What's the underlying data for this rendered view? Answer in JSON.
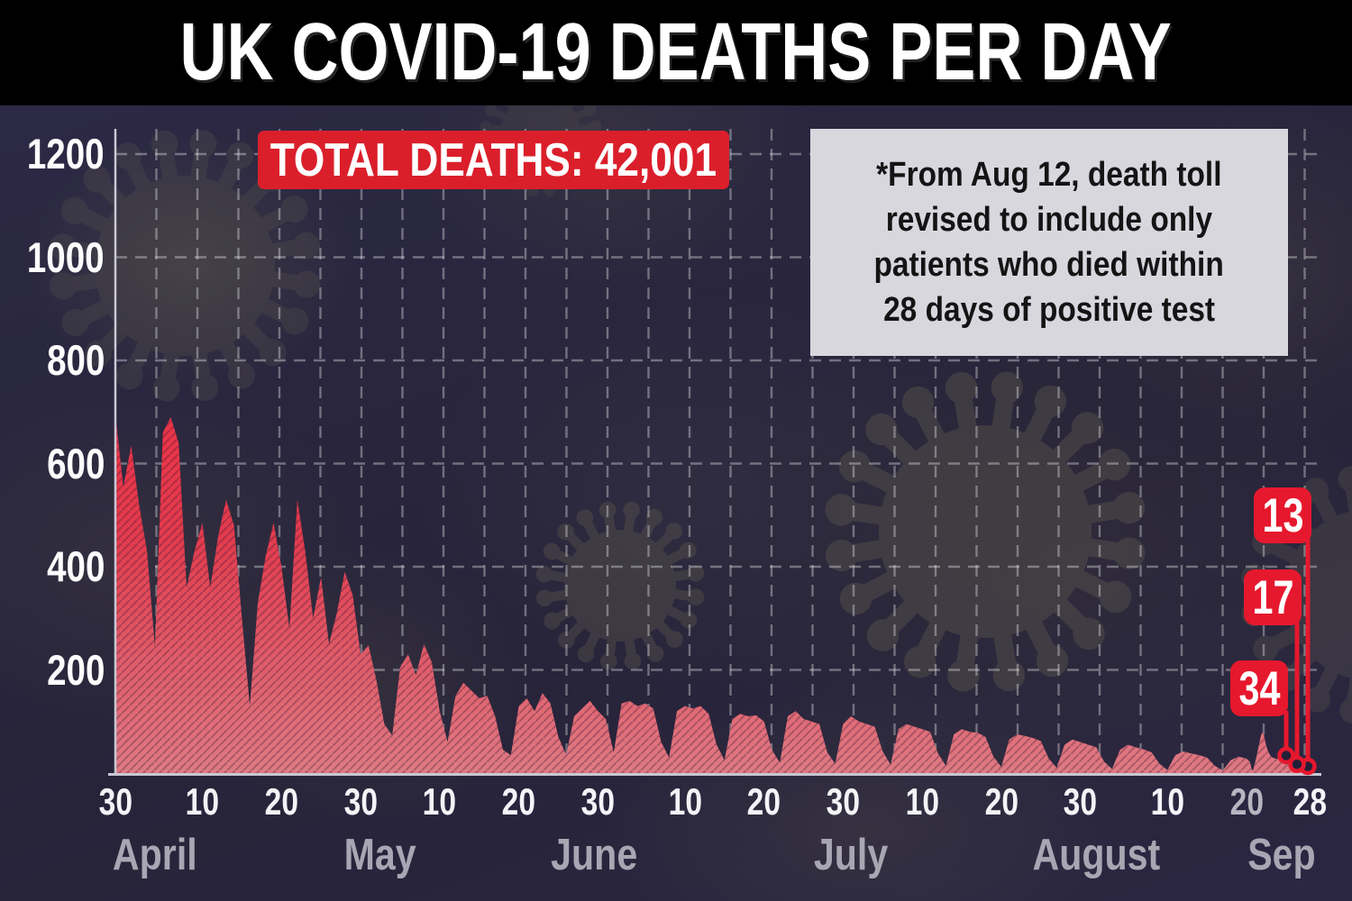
{
  "header": {
    "title": "UK COVID-19 DEATHS PER DAY"
  },
  "badges": {
    "total_deaths": "TOTAL DEATHS: 42,001",
    "total_deaths_value": 42001
  },
  "note": {
    "lines": [
      "*From Aug 12, death toll",
      "revised to include only",
      "patients who died within",
      "28 days of positive test"
    ]
  },
  "callouts": [
    {
      "label": "13",
      "value": 13
    },
    {
      "label": "17",
      "value": 17
    },
    {
      "label": "34",
      "value": 34
    }
  ],
  "colors": {
    "header_bg": "#000000",
    "title_color": "#ffffff",
    "background": "#2a2741",
    "accent_red": "#da1f2b",
    "callout_red": "#e6182d",
    "area_top": "#ec3347",
    "area_mid": "#e23c4e",
    "area_bottom": "#df7a83",
    "grid": "rgba(255,255,255,0.34)",
    "axis_line": "#c9c7d3",
    "tick_white": "#f4f3f7",
    "month_gray": "#a9a6b3",
    "note_bg": "#d8d7de",
    "virus_watermark": "#5b584e"
  },
  "chart_data": {
    "type": "area",
    "title": "UK COVID-19 DEATHS PER DAY",
    "xlabel": "",
    "ylabel": "Deaths per day",
    "start_date": "2020-03-30",
    "end_date": "2020-09-28",
    "ylim": [
      0,
      1250
    ],
    "grid": true,
    "y_ticks": [
      200,
      400,
      600,
      800,
      1000,
      1200
    ],
    "x_ticks": [
      {
        "label": "30",
        "day": 0
      },
      {
        "label": "10",
        "day": 11
      },
      {
        "label": "20",
        "day": 21
      },
      {
        "label": "30",
        "day": 31
      },
      {
        "label": "10",
        "day": 41
      },
      {
        "label": "20",
        "day": 51
      },
      {
        "label": "30",
        "day": 61
      },
      {
        "label": "10",
        "day": 72
      },
      {
        "label": "20",
        "day": 82
      },
      {
        "label": "30",
        "day": 92
      },
      {
        "label": "10",
        "day": 102
      },
      {
        "label": "20",
        "day": 112
      },
      {
        "label": "30",
        "day": 122
      },
      {
        "label": "10",
        "day": 133
      },
      {
        "label": "20",
        "day": 143,
        "muted": true
      },
      {
        "label": "28",
        "day": 182
      }
    ],
    "months": [
      {
        "label": "April",
        "day": 5
      },
      {
        "label": "May",
        "day": 33.5
      },
      {
        "label": "June",
        "day": 60.5
      },
      {
        "label": "July",
        "day": 93
      },
      {
        "label": "August",
        "day": 124
      },
      {
        "label": "Sep",
        "day": 164.7
      }
    ],
    "daily": [
      695,
      555,
      635,
      520,
      430,
      245,
      660,
      690,
      640,
      360,
      430,
      485,
      360,
      460,
      530,
      480,
      300,
      130,
      330,
      420,
      485,
      400,
      280,
      530,
      430,
      300,
      380,
      250,
      310,
      390,
      345,
      230,
      248,
      180,
      95,
      73,
      205,
      230,
      190,
      250,
      215,
      120,
      60,
      150,
      175,
      160,
      145,
      150,
      110,
      45,
      35,
      130,
      145,
      120,
      155,
      135,
      70,
      35,
      110,
      125,
      140,
      120,
      105,
      40,
      135,
      140,
      130,
      135,
      125,
      60,
      30,
      120,
      130,
      125,
      130,
      115,
      55,
      25,
      105,
      115,
      110,
      112,
      100,
      45,
      20,
      110,
      120,
      105,
      100,
      95,
      40,
      18,
      95,
      110,
      100,
      95,
      90,
      42,
      16,
      85,
      95,
      90,
      85,
      80,
      38,
      14,
      75,
      85,
      80,
      78,
      70,
      32,
      12,
      65,
      75,
      72,
      68,
      62,
      28,
      10,
      55,
      65,
      60,
      55,
      50,
      22,
      8,
      45,
      55,
      50,
      46,
      40,
      18,
      6,
      35,
      42,
      38,
      35,
      30,
      14,
      5,
      25,
      32,
      28,
      25,
      22,
      10,
      4,
      18,
      30,
      45,
      60,
      75,
      80,
      70,
      55,
      45,
      38,
      33,
      30,
      29,
      28,
      28,
      30,
      29,
      28,
      29,
      31,
      34,
      33,
      30,
      27,
      24,
      21,
      19,
      17,
      16,
      15,
      14,
      14,
      15,
      14,
      13
    ]
  }
}
